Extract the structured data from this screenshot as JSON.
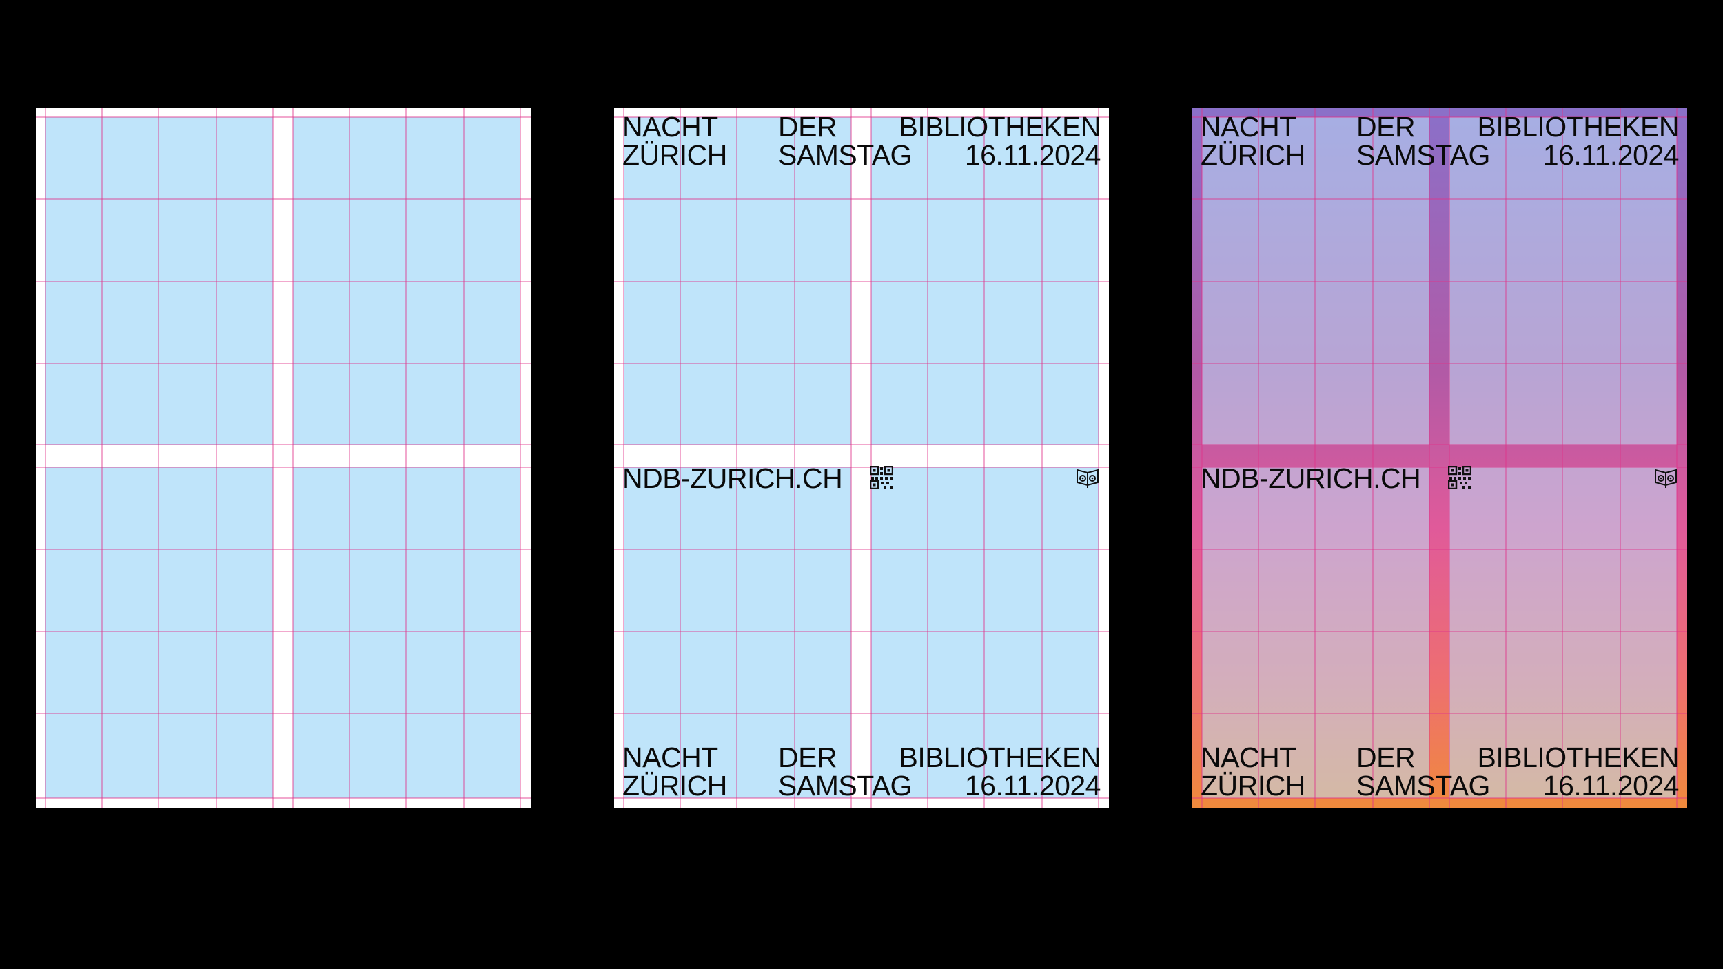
{
  "colors": {
    "background": "#000000",
    "panel": "#bfe4fa",
    "grid_line": "#e0338a",
    "gradient": [
      "#8a70c9",
      "#b25aa6",
      "#e05a9a",
      "#ee6f70",
      "#f08a3c"
    ]
  },
  "posters": [
    {
      "id": "grid-only"
    },
    {
      "id": "layout-on-grid"
    },
    {
      "id": "gradient-layout"
    }
  ],
  "headline": {
    "line1": {
      "left": "NACHT",
      "mid": "DER",
      "right": "BIBLIOTHEKEN"
    },
    "line2": {
      "left": "ZÜRICH",
      "mid": "SAMSTAG",
      "right": "16.11.2024"
    }
  },
  "url": "NDB-ZURICH.CH",
  "icons": {
    "qr": "qr-code-icon",
    "logo": "owl-book-icon"
  }
}
